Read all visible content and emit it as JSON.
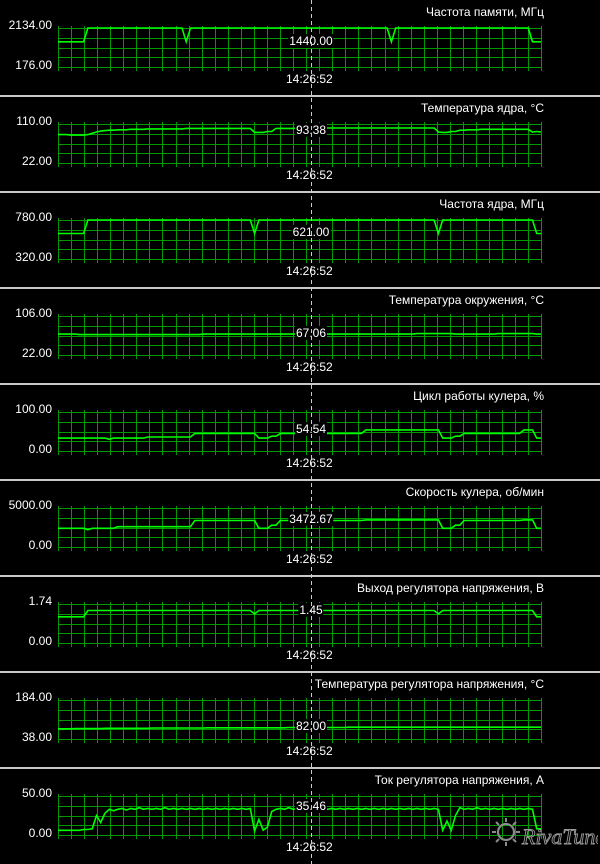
{
  "cursor_time": "14:26:52",
  "brand": "RivaTuner",
  "colors": {
    "grid": "#009900",
    "line": "#00ff00",
    "cursor": "#e8d060",
    "background": "#000000"
  },
  "panels": [
    {
      "title": "Частота памяти, МГц",
      "max": "2134.00",
      "min": "176.00",
      "value": "1440.00",
      "time": "14:26:52",
      "data": [
        1440,
        1440,
        1440,
        1440,
        1440,
        1440,
        1440,
        2134,
        2134,
        2134,
        2134,
        2134,
        2134,
        2134,
        2134,
        2134,
        2134,
        2134,
        2134,
        2134,
        2134,
        2134,
        2134,
        2134,
        2134,
        2134,
        2134,
        2134,
        2134,
        2134,
        1440,
        2134,
        2134,
        2134,
        2134,
        2134,
        2134,
        2134,
        2134,
        2134,
        2134,
        2134,
        2134,
        2134,
        2134,
        2134,
        2134,
        2134,
        2134,
        2134,
        2134,
        2134,
        2134,
        2134,
        2134,
        2134,
        2134,
        2134,
        2134,
        2134,
        2134,
        2134,
        2134,
        2134,
        2134,
        2134,
        2134,
        2134,
        2134,
        2134,
        2134,
        2134,
        2134,
        2134,
        2134,
        2134,
        2134,
        2134,
        1440,
        2134,
        2134,
        2134,
        2134,
        2134,
        2134,
        2134,
        2134,
        2134,
        2134,
        2134,
        2134,
        2134,
        2134,
        2134,
        2134,
        2134,
        2134,
        2134,
        2134,
        2134,
        2134,
        2134,
        2134,
        2134,
        2134,
        2134,
        2134,
        2134,
        2134,
        2134,
        2134,
        1440,
        1440,
        1440
      ]
    },
    {
      "title": "Температура ядра, °C",
      "max": "110.00",
      "min": "22.00",
      "value": "93.38",
      "time": "14:26:52",
      "data": [
        86,
        86,
        86,
        85,
        85,
        85,
        85,
        86,
        89,
        92,
        94,
        95,
        96,
        96,
        97,
        97,
        97,
        98,
        98,
        98,
        98,
        99,
        99,
        99,
        99,
        99,
        99,
        99,
        99,
        99,
        100,
        100,
        100,
        100,
        100,
        100,
        100,
        100,
        100,
        100,
        100,
        100,
        100,
        100,
        100,
        100,
        91,
        91,
        91,
        93,
        93,
        100,
        100,
        100,
        100,
        100,
        101,
        101,
        101,
        101,
        101,
        101,
        101,
        101,
        101,
        101,
        101,
        101,
        101,
        101,
        101,
        101,
        101,
        101,
        101,
        101,
        101,
        101,
        101,
        101,
        101,
        101,
        101,
        101,
        101,
        101,
        101,
        101,
        101,
        92,
        91,
        91,
        93,
        93,
        96,
        96,
        97,
        97,
        97,
        98,
        98,
        98,
        98,
        98,
        98,
        98,
        98,
        98,
        98,
        98,
        98,
        92,
        93,
        92
      ]
    },
    {
      "title": "Частота ядра, МГц",
      "max": "780.00",
      "min": "320.00",
      "value": "621.00",
      "time": "14:26:52",
      "data": [
        621,
        621,
        621,
        621,
        621,
        621,
        621,
        780,
        780,
        780,
        780,
        780,
        780,
        780,
        780,
        780,
        780,
        780,
        780,
        780,
        780,
        780,
        780,
        780,
        780,
        780,
        780,
        780,
        780,
        780,
        780,
        780,
        780,
        780,
        780,
        780,
        780,
        780,
        780,
        780,
        780,
        780,
        780,
        780,
        780,
        780,
        621,
        780,
        780,
        780,
        780,
        780,
        780,
        780,
        780,
        780,
        780,
        780,
        780,
        780,
        780,
        780,
        780,
        780,
        780,
        780,
        780,
        780,
        780,
        780,
        780,
        780,
        780,
        780,
        780,
        780,
        780,
        780,
        780,
        780,
        780,
        780,
        780,
        780,
        780,
        780,
        780,
        780,
        780,
        621,
        780,
        780,
        780,
        780,
        780,
        780,
        780,
        780,
        780,
        780,
        780,
        780,
        780,
        780,
        780,
        780,
        780,
        780,
        780,
        780,
        780,
        780,
        621,
        621
      ]
    },
    {
      "title": "Температура окружения, °C",
      "max": "106.00",
      "min": "22.00",
      "value": "67.06",
      "time": "14:26:52",
      "data": [
        67,
        67,
        67,
        67,
        67,
        66,
        66,
        66,
        66,
        66,
        66,
        66,
        66,
        66,
        66,
        66,
        66,
        66,
        66,
        66,
        66,
        66,
        66,
        66,
        66,
        66,
        66,
        66,
        66,
        66,
        66,
        66,
        66,
        66,
        67,
        67,
        67,
        67,
        67,
        67,
        67,
        67,
        67,
        67,
        67,
        67,
        67,
        67,
        67,
        67,
        67,
        67,
        67,
        67,
        67,
        67,
        67,
        67,
        67,
        67,
        67,
        67,
        67,
        67,
        67,
        67,
        67,
        67,
        67,
        67,
        67,
        67,
        67,
        67,
        67,
        67,
        67,
        67,
        67,
        67,
        67,
        67,
        67,
        67,
        68,
        68,
        68,
        68,
        68,
        68,
        68,
        68,
        68,
        67,
        67,
        67,
        67,
        67,
        67,
        67,
        67,
        67,
        67,
        68,
        68,
        68,
        68,
        68,
        68,
        68,
        68,
        68,
        67,
        67
      ]
    },
    {
      "title": "Цикл работы кулера, %",
      "max": "100.00",
      "min": "0.00",
      "value": "54.54",
      "time": "14:26:52",
      "data": [
        33,
        33,
        33,
        33,
        33,
        33,
        33,
        33,
        33,
        33,
        33,
        33,
        30,
        33,
        33,
        33,
        33,
        33,
        33,
        33,
        33,
        36,
        36,
        36,
        36,
        36,
        36,
        36,
        36,
        36,
        36,
        36,
        45,
        45,
        45,
        45,
        45,
        45,
        45,
        45,
        45,
        45,
        45,
        45,
        45,
        45,
        45,
        33,
        33,
        33,
        38,
        38,
        45,
        45,
        45,
        45,
        45,
        45,
        45,
        45,
        45,
        45,
        45,
        45,
        45,
        45,
        45,
        45,
        45,
        45,
        45,
        45,
        54,
        54,
        54,
        54,
        54,
        54,
        54,
        54,
        54,
        54,
        54,
        54,
        54,
        54,
        54,
        54,
        54,
        54,
        33,
        33,
        33,
        38,
        38,
        45,
        45,
        45,
        45,
        45,
        45,
        45,
        45,
        45,
        45,
        45,
        45,
        45,
        45,
        54,
        54,
        54,
        33,
        33
      ]
    },
    {
      "title": "Скорость кулера, об/мин",
      "max": "5000.00",
      "min": "0.00",
      "value": "3472.67",
      "time": "14:26:52",
      "data": [
        2400,
        2400,
        2400,
        2400,
        2400,
        2400,
        2400,
        2200,
        2400,
        2400,
        2400,
        2400,
        2400,
        2400,
        2600,
        2600,
        2600,
        2600,
        2600,
        2600,
        2600,
        2600,
        2600,
        2600,
        2600,
        2600,
        2600,
        2600,
        2600,
        2600,
        2600,
        2600,
        3400,
        3400,
        3400,
        3400,
        3400,
        3400,
        3400,
        3400,
        3400,
        3400,
        3400,
        3400,
        3400,
        3400,
        3400,
        2400,
        2400,
        2400,
        2800,
        2800,
        3400,
        3400,
        3400,
        3400,
        3400,
        3400,
        3400,
        3400,
        3400,
        3400,
        3400,
        3400,
        3400,
        3400,
        3400,
        3400,
        3400,
        3400,
        3400,
        3400,
        3470,
        3470,
        3470,
        3470,
        3470,
        3470,
        3470,
        3470,
        3470,
        3470,
        3470,
        3470,
        3470,
        3470,
        3470,
        3470,
        3470,
        3470,
        2400,
        2400,
        2400,
        2800,
        2800,
        3400,
        3400,
        3400,
        3400,
        3400,
        3400,
        3400,
        3400,
        3400,
        3400,
        3400,
        3400,
        3400,
        3400,
        3470,
        3470,
        3470,
        2400,
        2400
      ]
    },
    {
      "title": "Выход регулятора напряжения, В",
      "max": "1.74",
      "min": "0.00",
      "value": "1.45",
      "time": "14:26:52",
      "data": [
        1.17,
        1.17,
        1.17,
        1.17,
        1.17,
        1.17,
        1.17,
        1.45,
        1.45,
        1.45,
        1.45,
        1.45,
        1.45,
        1.45,
        1.45,
        1.45,
        1.45,
        1.45,
        1.45,
        1.45,
        1.45,
        1.45,
        1.45,
        1.45,
        1.45,
        1.45,
        1.45,
        1.45,
        1.45,
        1.45,
        1.45,
        1.45,
        1.45,
        1.45,
        1.45,
        1.45,
        1.45,
        1.45,
        1.45,
        1.45,
        1.45,
        1.45,
        1.45,
        1.45,
        1.45,
        1.45,
        1.3,
        1.45,
        1.45,
        1.45,
        1.45,
        1.45,
        1.45,
        1.45,
        1.45,
        1.45,
        1.45,
        1.45,
        1.45,
        1.45,
        1.45,
        1.45,
        1.45,
        1.45,
        1.45,
        1.45,
        1.45,
        1.45,
        1.45,
        1.45,
        1.45,
        1.45,
        1.45,
        1.45,
        1.45,
        1.45,
        1.45,
        1.45,
        1.45,
        1.45,
        1.45,
        1.45,
        1.45,
        1.45,
        1.45,
        1.45,
        1.45,
        1.45,
        1.45,
        1.3,
        1.45,
        1.45,
        1.45,
        1.45,
        1.45,
        1.45,
        1.45,
        1.45,
        1.45,
        1.45,
        1.45,
        1.45,
        1.45,
        1.45,
        1.45,
        1.45,
        1.45,
        1.45,
        1.45,
        1.45,
        1.45,
        1.45,
        1.17,
        1.17
      ]
    },
    {
      "title": "Температура регулятора напряжения, °C",
      "max": "184.00",
      "min": "38.00",
      "value": "82.00",
      "time": "14:26:52",
      "data": [
        76,
        76,
        76,
        76,
        77,
        77,
        77,
        77,
        77,
        77,
        77,
        78,
        78,
        78,
        78,
        78,
        78,
        78,
        78,
        78,
        78,
        78,
        79,
        79,
        79,
        79,
        79,
        79,
        79,
        79,
        79,
        79,
        79,
        79,
        79,
        80,
        80,
        80,
        80,
        80,
        80,
        80,
        80,
        80,
        80,
        80,
        80,
        80,
        80,
        80,
        80,
        80,
        80,
        80,
        81,
        81,
        81,
        81,
        81,
        81,
        81,
        81,
        81,
        81,
        81,
        81,
        81,
        81,
        82,
        82,
        82,
        82,
        82,
        82,
        82,
        82,
        82,
        82,
        82,
        82,
        82,
        82,
        82,
        82,
        82,
        82,
        82,
        82,
        82,
        82,
        82,
        82,
        82,
        82,
        82,
        82,
        82,
        82,
        82,
        82,
        82,
        82,
        82,
        82,
        82,
        82,
        82,
        82,
        82,
        82,
        82,
        82,
        82,
        82
      ]
    },
    {
      "title": "Ток регулятора напряжения, А",
      "max": "50.00",
      "min": "0.00",
      "value": "35.46",
      "time": "14:26:52",
      "data": [
        6,
        6,
        6,
        6,
        6,
        6,
        7,
        7,
        8,
        25,
        16,
        28,
        33,
        31,
        33,
        34,
        32,
        34,
        33,
        35,
        33,
        34,
        33,
        34,
        33,
        35,
        33,
        34,
        33,
        34,
        33,
        34,
        33,
        34,
        33,
        34,
        33,
        34,
        33,
        34,
        33,
        34,
        33,
        34,
        33,
        34,
        5,
        20,
        6,
        10,
        30,
        33,
        34,
        33,
        35,
        33,
        34,
        33,
        34,
        33,
        34,
        33,
        34,
        33,
        34,
        33,
        34,
        33,
        34,
        33,
        34,
        33,
        34,
        33,
        34,
        33,
        34,
        33,
        34,
        33,
        34,
        33,
        34,
        33,
        34,
        33,
        34,
        33,
        34,
        33,
        6,
        18,
        6,
        25,
        35,
        33,
        34,
        33,
        35,
        33,
        34,
        33,
        34,
        33,
        34,
        33,
        34,
        33,
        34,
        33,
        34,
        33,
        8,
        8
      ]
    }
  ]
}
